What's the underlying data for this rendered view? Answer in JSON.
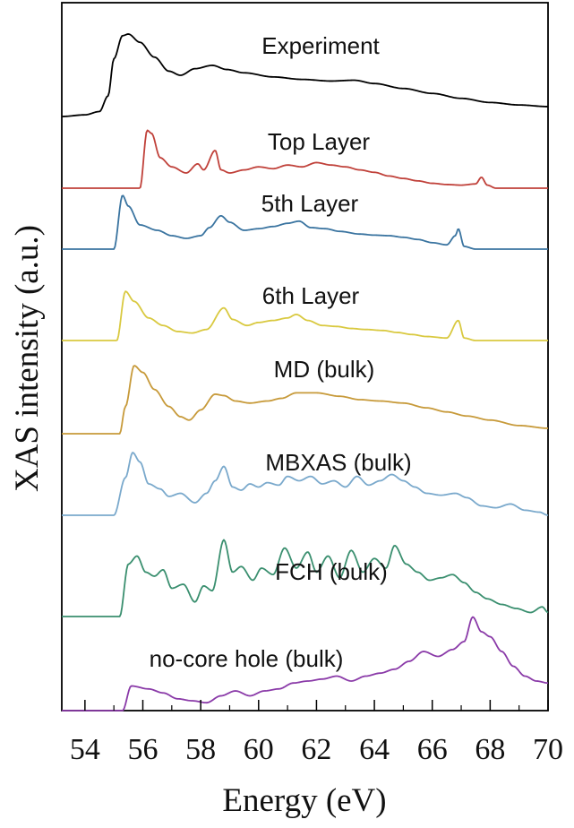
{
  "chart_data": {
    "type": "line",
    "title": "",
    "xlabel": "Energy (eV)",
    "ylabel": "XAS intensity (a.u.)",
    "xlim": [
      53.2,
      70
    ],
    "x_ticks": [
      "54",
      "56",
      "58",
      "60",
      "62",
      "64",
      "66",
      "68",
      "70"
    ],
    "y_ticks": "none",
    "grid": false,
    "legend": "none (curves labelled directly, stacked with vertical offsets)",
    "series": [
      {
        "name": "Experiment",
        "color": "#000000",
        "onset": 54.7,
        "points": [
          [
            53.2,
            0.0
          ],
          [
            54.0,
            0.02
          ],
          [
            54.5,
            0.06
          ],
          [
            54.8,
            0.25
          ],
          [
            55.0,
            0.7
          ],
          [
            55.3,
            0.98
          ],
          [
            55.5,
            1.0
          ],
          [
            55.9,
            0.9
          ],
          [
            56.4,
            0.72
          ],
          [
            56.9,
            0.55
          ],
          [
            57.3,
            0.5
          ],
          [
            57.8,
            0.58
          ],
          [
            58.4,
            0.62
          ],
          [
            58.9,
            0.57
          ],
          [
            59.5,
            0.53
          ],
          [
            60.5,
            0.48
          ],
          [
            61.5,
            0.45
          ],
          [
            62.5,
            0.43
          ],
          [
            63.3,
            0.44
          ],
          [
            64.0,
            0.4
          ],
          [
            65.0,
            0.34
          ],
          [
            66.0,
            0.28
          ],
          [
            67.0,
            0.22
          ],
          [
            68.0,
            0.17
          ],
          [
            69.0,
            0.14
          ],
          [
            70.0,
            0.12
          ]
        ]
      },
      {
        "name": "Top Layer",
        "color": "#c0413a",
        "onset": 55.9,
        "points": [
          [
            55.9,
            0.0
          ],
          [
            56.15,
            0.95
          ],
          [
            56.3,
            0.9
          ],
          [
            56.6,
            0.5
          ],
          [
            57.0,
            0.35
          ],
          [
            57.5,
            0.25
          ],
          [
            57.9,
            0.4
          ],
          [
            58.1,
            0.3
          ],
          [
            58.5,
            0.62
          ],
          [
            58.7,
            0.3
          ],
          [
            59.0,
            0.25
          ],
          [
            59.5,
            0.3
          ],
          [
            60.0,
            0.35
          ],
          [
            60.5,
            0.32
          ],
          [
            61.0,
            0.38
          ],
          [
            61.5,
            0.35
          ],
          [
            62.0,
            0.42
          ],
          [
            62.5,
            0.38
          ],
          [
            63.0,
            0.35
          ],
          [
            63.5,
            0.3
          ],
          [
            64.0,
            0.26
          ],
          [
            64.5,
            0.2
          ],
          [
            65.0,
            0.16
          ],
          [
            65.5,
            0.12
          ],
          [
            66.0,
            0.08
          ],
          [
            66.5,
            0.06
          ],
          [
            67.0,
            0.05
          ],
          [
            67.5,
            0.07
          ],
          [
            67.7,
            0.18
          ],
          [
            67.9,
            0.05
          ],
          [
            68.2,
            0.0
          ],
          [
            70.0,
            0.0
          ]
        ]
      },
      {
        "name": "5th Layer",
        "color": "#3a74a0",
        "onset": 55.0,
        "points": [
          [
            55.0,
            0.0
          ],
          [
            55.3,
            1.0
          ],
          [
            55.5,
            0.8
          ],
          [
            55.9,
            0.45
          ],
          [
            56.5,
            0.35
          ],
          [
            57.0,
            0.25
          ],
          [
            57.5,
            0.2
          ],
          [
            58.0,
            0.25
          ],
          [
            58.3,
            0.4
          ],
          [
            58.7,
            0.62
          ],
          [
            59.0,
            0.5
          ],
          [
            59.5,
            0.35
          ],
          [
            60.0,
            0.38
          ],
          [
            60.5,
            0.42
          ],
          [
            61.0,
            0.48
          ],
          [
            61.4,
            0.52
          ],
          [
            61.8,
            0.4
          ],
          [
            62.3,
            0.38
          ],
          [
            62.8,
            0.33
          ],
          [
            63.5,
            0.28
          ],
          [
            64.0,
            0.26
          ],
          [
            64.5,
            0.25
          ],
          [
            65.0,
            0.22
          ],
          [
            65.5,
            0.18
          ],
          [
            66.0,
            0.12
          ],
          [
            66.5,
            0.08
          ],
          [
            66.8,
            0.25
          ],
          [
            66.9,
            0.38
          ],
          [
            67.1,
            0.05
          ],
          [
            67.5,
            0.0
          ],
          [
            70.0,
            0.0
          ]
        ]
      },
      {
        "name": "6th Layer",
        "color": "#d9c940",
        "onset": 55.1,
        "points": [
          [
            55.1,
            0.0
          ],
          [
            55.4,
            0.98
          ],
          [
            55.7,
            0.78
          ],
          [
            56.2,
            0.45
          ],
          [
            56.7,
            0.3
          ],
          [
            57.2,
            0.18
          ],
          [
            57.7,
            0.15
          ],
          [
            58.2,
            0.22
          ],
          [
            58.8,
            0.65
          ],
          [
            59.1,
            0.42
          ],
          [
            59.6,
            0.3
          ],
          [
            60.0,
            0.36
          ],
          [
            60.5,
            0.4
          ],
          [
            61.0,
            0.45
          ],
          [
            61.3,
            0.52
          ],
          [
            61.7,
            0.4
          ],
          [
            62.2,
            0.3
          ],
          [
            62.7,
            0.28
          ],
          [
            63.2,
            0.24
          ],
          [
            63.7,
            0.22
          ],
          [
            64.3,
            0.2
          ],
          [
            64.8,
            0.16
          ],
          [
            65.3,
            0.12
          ],
          [
            65.8,
            0.08
          ],
          [
            66.5,
            0.05
          ],
          [
            66.9,
            0.4
          ],
          [
            67.1,
            0.05
          ],
          [
            67.5,
            0.0
          ],
          [
            70.0,
            0.0
          ]
        ]
      },
      {
        "name": "MD (bulk)",
        "color": "#c79a3a",
        "onset": 55.2,
        "points": [
          [
            55.2,
            0.0
          ],
          [
            55.4,
            0.4
          ],
          [
            55.7,
            1.0
          ],
          [
            56.0,
            0.9
          ],
          [
            56.4,
            0.65
          ],
          [
            56.9,
            0.4
          ],
          [
            57.3,
            0.25
          ],
          [
            57.6,
            0.2
          ],
          [
            58.0,
            0.35
          ],
          [
            58.5,
            0.58
          ],
          [
            58.8,
            0.56
          ],
          [
            59.2,
            0.48
          ],
          [
            59.7,
            0.45
          ],
          [
            60.3,
            0.48
          ],
          [
            60.8,
            0.52
          ],
          [
            61.3,
            0.6
          ],
          [
            62.0,
            0.6
          ],
          [
            62.8,
            0.55
          ],
          [
            63.5,
            0.5
          ],
          [
            64.2,
            0.48
          ],
          [
            65.0,
            0.45
          ],
          [
            65.8,
            0.38
          ],
          [
            66.5,
            0.32
          ],
          [
            67.2,
            0.26
          ],
          [
            68.0,
            0.2
          ],
          [
            69.0,
            0.12
          ],
          [
            70.0,
            0.08
          ]
        ]
      },
      {
        "name": "MBXAS (bulk)",
        "color": "#7aa9cc",
        "onset": 55.0,
        "points": [
          [
            55.0,
            0.0
          ],
          [
            55.4,
            0.6
          ],
          [
            55.65,
            1.0
          ],
          [
            55.9,
            0.85
          ],
          [
            56.2,
            0.5
          ],
          [
            56.6,
            0.42
          ],
          [
            56.9,
            0.3
          ],
          [
            57.3,
            0.35
          ],
          [
            57.8,
            0.2
          ],
          [
            58.2,
            0.35
          ],
          [
            58.5,
            0.55
          ],
          [
            58.8,
            0.78
          ],
          [
            59.1,
            0.45
          ],
          [
            59.4,
            0.4
          ],
          [
            59.7,
            0.5
          ],
          [
            60.0,
            0.45
          ],
          [
            60.3,
            0.52
          ],
          [
            60.7,
            0.48
          ],
          [
            61.0,
            0.62
          ],
          [
            61.4,
            0.55
          ],
          [
            61.8,
            0.62
          ],
          [
            62.2,
            0.5
          ],
          [
            62.6,
            0.55
          ],
          [
            63.0,
            0.45
          ],
          [
            63.4,
            0.62
          ],
          [
            63.8,
            0.48
          ],
          [
            64.2,
            0.55
          ],
          [
            64.6,
            0.65
          ],
          [
            65.0,
            0.55
          ],
          [
            65.4,
            0.45
          ],
          [
            65.8,
            0.35
          ],
          [
            66.3,
            0.32
          ],
          [
            66.8,
            0.35
          ],
          [
            67.2,
            0.28
          ],
          [
            67.7,
            0.15
          ],
          [
            68.2,
            0.12
          ],
          [
            68.7,
            0.18
          ],
          [
            69.2,
            0.08
          ],
          [
            69.7,
            0.05
          ],
          [
            70.0,
            0.0
          ]
        ]
      },
      {
        "name": "FCH (bulk)",
        "color": "#3a8f6f",
        "onset": 55.2,
        "points": [
          [
            55.2,
            0.0
          ],
          [
            55.5,
            0.65
          ],
          [
            55.8,
            0.75
          ],
          [
            56.1,
            0.55
          ],
          [
            56.4,
            0.5
          ],
          [
            56.7,
            0.58
          ],
          [
            57.0,
            0.35
          ],
          [
            57.4,
            0.4
          ],
          [
            57.8,
            0.18
          ],
          [
            58.1,
            0.38
          ],
          [
            58.4,
            0.32
          ],
          [
            58.8,
            0.95
          ],
          [
            59.1,
            0.55
          ],
          [
            59.4,
            0.62
          ],
          [
            59.8,
            0.45
          ],
          [
            60.1,
            0.6
          ],
          [
            60.5,
            0.52
          ],
          [
            60.9,
            0.85
          ],
          [
            61.3,
            0.6
          ],
          [
            61.7,
            0.8
          ],
          [
            62.0,
            0.55
          ],
          [
            62.4,
            0.75
          ],
          [
            62.8,
            0.48
          ],
          [
            63.2,
            0.82
          ],
          [
            63.6,
            0.55
          ],
          [
            64.0,
            0.72
          ],
          [
            64.4,
            0.6
          ],
          [
            64.7,
            0.88
          ],
          [
            65.1,
            0.65
          ],
          [
            65.5,
            0.55
          ],
          [
            65.9,
            0.45
          ],
          [
            66.3,
            0.48
          ],
          [
            66.7,
            0.52
          ],
          [
            67.1,
            0.42
          ],
          [
            67.5,
            0.3
          ],
          [
            67.9,
            0.22
          ],
          [
            68.4,
            0.15
          ],
          [
            68.9,
            0.1
          ],
          [
            69.4,
            0.05
          ],
          [
            69.8,
            0.12
          ],
          [
            70.0,
            0.05
          ]
        ]
      },
      {
        "name": "no-core hole (bulk)",
        "color": "#8a3aa8",
        "onset": 55.3,
        "points": [
          [
            55.3,
            0.0
          ],
          [
            55.6,
            0.25
          ],
          [
            56.2,
            0.22
          ],
          [
            56.7,
            0.18
          ],
          [
            57.2,
            0.12
          ],
          [
            57.7,
            0.1
          ],
          [
            58.2,
            0.08
          ],
          [
            58.7,
            0.15
          ],
          [
            59.2,
            0.2
          ],
          [
            59.7,
            0.15
          ],
          [
            60.2,
            0.2
          ],
          [
            60.7,
            0.22
          ],
          [
            61.2,
            0.28
          ],
          [
            61.7,
            0.3
          ],
          [
            62.2,
            0.32
          ],
          [
            62.7,
            0.35
          ],
          [
            63.2,
            0.3
          ],
          [
            63.7,
            0.35
          ],
          [
            64.2,
            0.38
          ],
          [
            64.7,
            0.42
          ],
          [
            65.2,
            0.5
          ],
          [
            65.7,
            0.6
          ],
          [
            66.2,
            0.55
          ],
          [
            66.7,
            0.62
          ],
          [
            67.1,
            0.7
          ],
          [
            67.4,
            0.95
          ],
          [
            67.7,
            0.8
          ],
          [
            68.0,
            0.75
          ],
          [
            68.4,
            0.6
          ],
          [
            68.8,
            0.45
          ],
          [
            69.2,
            0.35
          ],
          [
            69.6,
            0.3
          ],
          [
            70.0,
            0.28
          ]
        ]
      }
    ]
  }
}
